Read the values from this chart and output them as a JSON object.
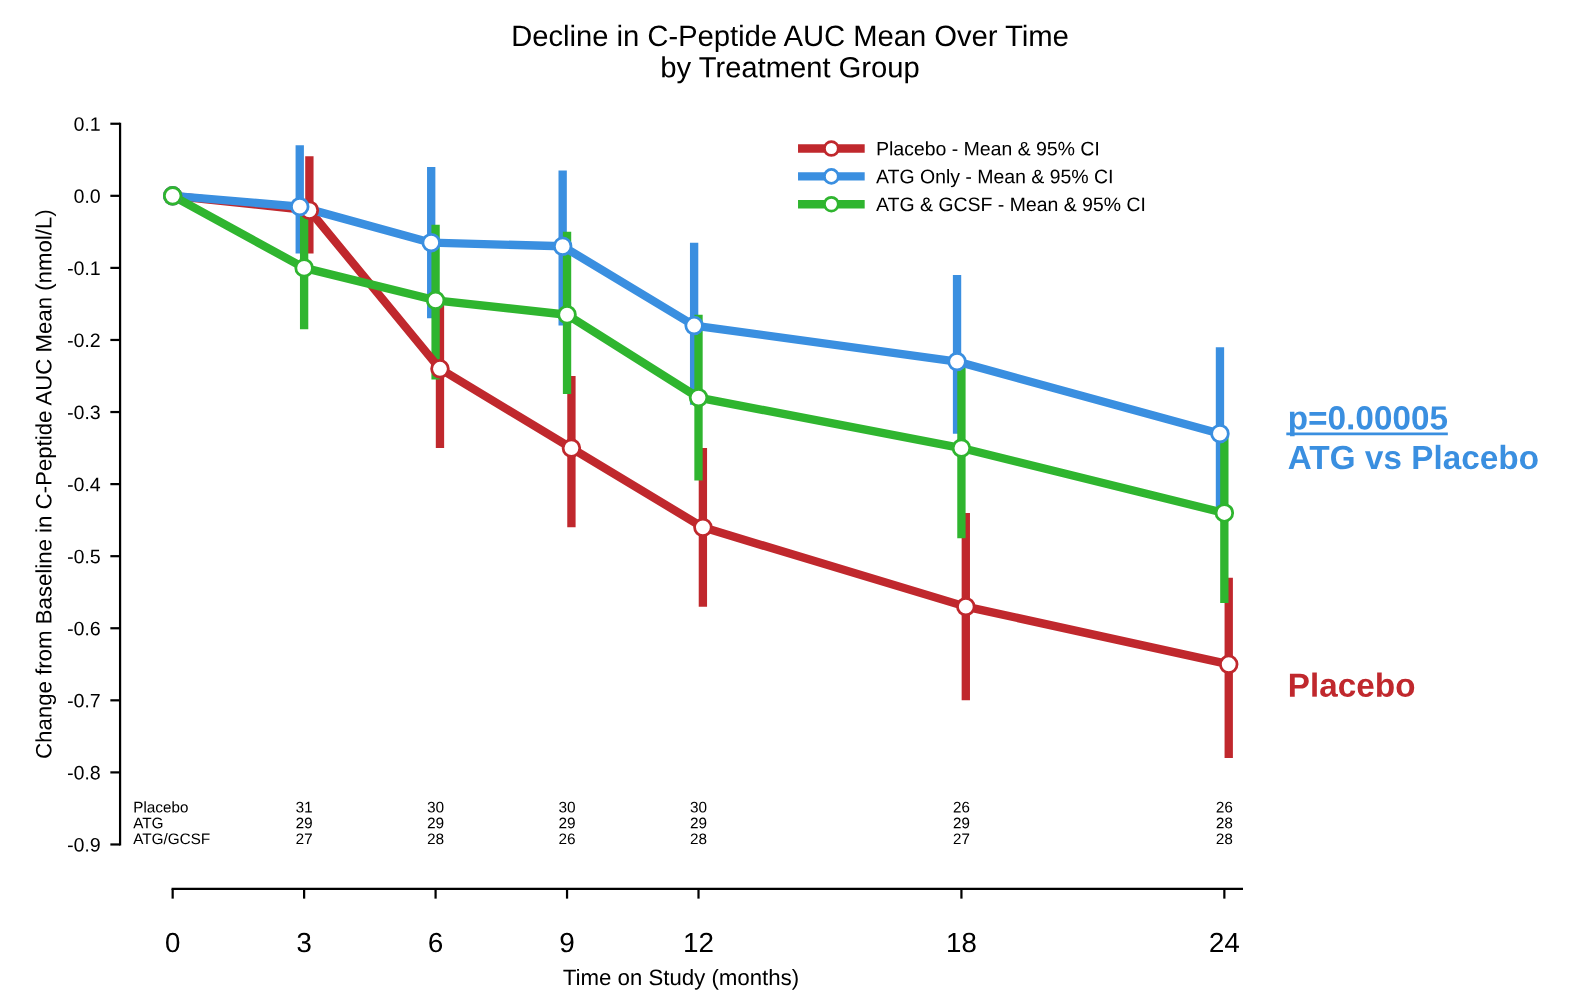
{
  "chart_data": {
    "type": "line",
    "title": "Decline in C-Peptide AUC Mean Over Time\nby Treatment Group",
    "xlabel": "Time on Study (months)",
    "ylabel": "Change from Baseline in C-Peptide AUC Mean (nmol/L)",
    "x": [
      0,
      3,
      6,
      9,
      12,
      18,
      24
    ],
    "series": [
      {
        "name": "Placebo - Mean & 95% CI",
        "color": "#c0282d",
        "x": [
          0,
          3.12,
          6.1,
          9.1,
          12.1,
          18.1,
          24.1
        ],
        "values": [
          0,
          -0.02,
          -0.24,
          -0.35,
          -0.46,
          -0.57,
          -0.65
        ],
        "errors": [
          null,
          [
            -0.08,
            0.055
          ],
          [
            -0.35,
            -0.14
          ],
          [
            -0.46,
            -0.25
          ],
          [
            -0.57,
            -0.35
          ],
          [
            -0.7,
            -0.44
          ],
          [
            -0.78,
            -0.53
          ]
        ]
      },
      {
        "name": "ATG Only - Mean & 95% CI",
        "color": "#3a8fe0",
        "x": [
          0,
          2.9,
          5.9,
          8.9,
          11.9,
          17.9,
          23.9
        ],
        "values": [
          0,
          -0.015,
          -0.065,
          -0.07,
          -0.18,
          -0.23,
          -0.33
        ],
        "errors": [
          null,
          [
            -0.08,
            0.07
          ],
          [
            -0.17,
            0.04
          ],
          [
            -0.18,
            0.035
          ],
          [
            -0.29,
            -0.065
          ],
          [
            -0.33,
            -0.11
          ],
          [
            -0.44,
            -0.21
          ]
        ]
      },
      {
        "name": "ATG & GCSF - Mean & 95% CI",
        "color": "#2fb52f",
        "values": [
          0,
          -0.1,
          -0.145,
          -0.165,
          -0.28,
          -0.35,
          -0.44
        ],
        "errors": [
          null,
          [
            -0.185,
            -0.02
          ],
          [
            -0.255,
            -0.04
          ],
          [
            -0.275,
            -0.05
          ],
          [
            -0.395,
            -0.165
          ],
          [
            -0.475,
            -0.23
          ],
          [
            -0.565,
            -0.325
          ]
        ]
      }
    ],
    "xlim": [
      -1.2,
      24.4
    ],
    "xticks": [
      0,
      3,
      6,
      9,
      12,
      18,
      24
    ],
    "ylim": [
      -0.9,
      0.1
    ],
    "yticks": [
      0.1,
      {
        "value": 0,
        "label": "0.0"
      },
      {
        "value": -0.1,
        "label": "-0.1"
      },
      {
        "value": -0.2,
        "label": "-0.2"
      },
      {
        "value": -0.3,
        "label": "-0.3"
      },
      {
        "value": -0.4,
        "label": "-0.4"
      },
      {
        "value": -0.5,
        "label": "-0.5"
      },
      {
        "value": -0.6,
        "label": "-0.6"
      },
      {
        "value": -0.7,
        "label": "-0.7"
      },
      {
        "value": -0.8,
        "label": "-0.8"
      },
      {
        "value": -0.9,
        "label": "-0.9"
      }
    ],
    "grid": false,
    "legend": "top right",
    "marker": "circle",
    "line_style": "solid",
    "annotations": [
      "Placebo",
      "31",
      "30",
      "30",
      "30",
      "26",
      "26",
      "ATG",
      "29",
      "29",
      "29",
      "29",
      "29",
      "28",
      "ATG/GCSF",
      "27",
      "28",
      "26",
      "28",
      "27",
      "28",
      "p=0.00005",
      "ATG vs Placebo",
      "Placebo"
    ]
  }
}
